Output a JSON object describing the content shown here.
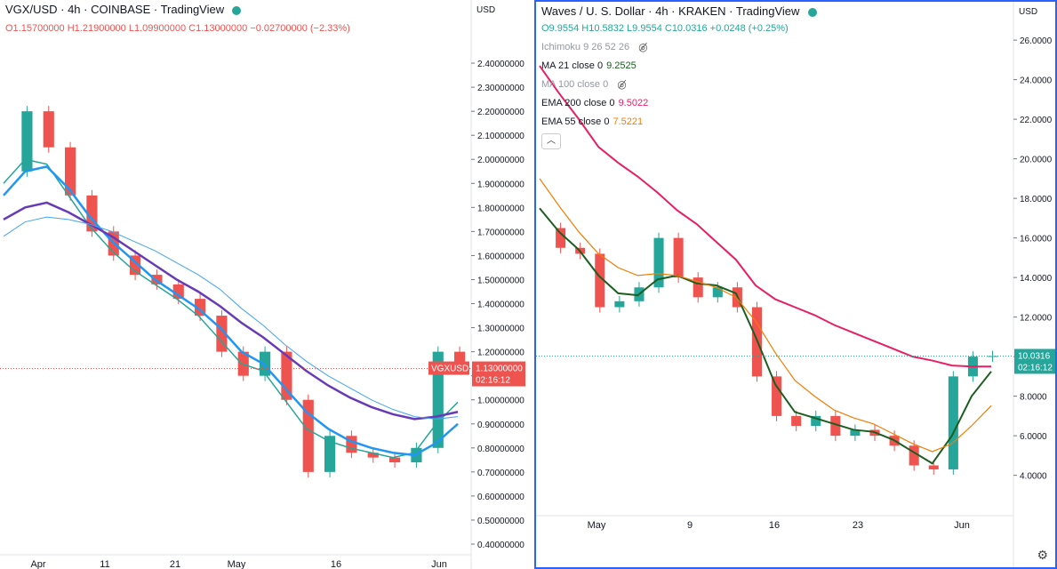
{
  "left": {
    "title": "VGX/USD · 4h · COINBASE · TradingView",
    "ohlc": {
      "o": "O1.15700000",
      "h": "H1.21900000",
      "l": "L1.09900000",
      "c": "C1.13000000",
      "chg": "−0.02700000 (−2.33%)"
    },
    "axis_label": "USD",
    "price_label": "1.13000000",
    "time_label": "02:16:12",
    "symbol_badge": "VGXUSD",
    "colors": {
      "up": "#26a69a",
      "down": "#ef5350",
      "ema_blue": "#2196f3",
      "ema_purple": "#673ab7",
      "ema_green": "#26a69a",
      "ema_light": "#42a5f5"
    }
  },
  "right": {
    "title": "Waves / U. S. Dollar · 4h · KRAKEN · TradingView",
    "ohlc": {
      "o": "O9.9554",
      "h": "H10.5832",
      "l": "L9.9554",
      "c": "C10.0316",
      "chg": "+0.0248 (+0.25%)"
    },
    "indicators": [
      {
        "label": "Ichimoku 9 26 52 26",
        "value": "",
        "hidden": true
      },
      {
        "label": "MA 21 close 0",
        "value": "9.2525",
        "hidden": false,
        "color": "#1b5e20"
      },
      {
        "label": "MA 100 close 0",
        "value": "",
        "hidden": true
      },
      {
        "label": "EMA 200 close 0",
        "value": "9.5022",
        "hidden": false,
        "color": "#e91e63"
      },
      {
        "label": "EMA 55 close 0",
        "value": "7.5221",
        "hidden": false,
        "color": "#f57c00"
      }
    ],
    "axis_label": "USD",
    "price_label": "10.0316",
    "time_label": "02:16:12",
    "colors": {
      "up": "#26a69a",
      "down": "#ef5350",
      "ma21": "#1b5e20",
      "ema200": "#e91e63",
      "ema55": "#f57c00"
    }
  },
  "chart_data": [
    {
      "type": "line",
      "title": "VGX/USD · 4h · COINBASE",
      "ylabel": "USD",
      "ylim": [
        0.4,
        2.5
      ],
      "yticks": [
        "2.40000000",
        "2.30000000",
        "2.20000000",
        "2.10000000",
        "2.00000000",
        "1.90000000",
        "1.80000000",
        "1.70000000",
        "1.60000000",
        "1.50000000",
        "1.40000000",
        "1.30000000",
        "1.20000000",
        "1.10000000",
        "1.00000000",
        "0.90000000",
        "0.80000000",
        "0.70000000",
        "0.60000000",
        "0.50000000",
        "0.40000000"
      ],
      "xticks": [
        "Apr",
        "11",
        "21",
        "May",
        "16",
        "Jun"
      ],
      "series": [
        {
          "name": "close",
          "values": [
            1.95,
            2.2,
            2.05,
            1.85,
            1.7,
            1.6,
            1.52,
            1.48,
            1.42,
            1.35,
            1.2,
            1.1,
            1.2,
            1.0,
            0.7,
            0.85,
            0.78,
            0.76,
            0.74,
            0.8,
            1.2,
            1.13
          ]
        },
        {
          "name": "ema-fast",
          "values": [
            1.9,
            2.0,
            1.98,
            1.85,
            1.72,
            1.62,
            1.54,
            1.48,
            1.42,
            1.35,
            1.25,
            1.15,
            1.12,
            1.0,
            0.88,
            0.83,
            0.8,
            0.78,
            0.76,
            0.78,
            0.9,
            0.99
          ]
        },
        {
          "name": "ema-mid",
          "values": [
            1.85,
            1.95,
            1.97,
            1.88,
            1.76,
            1.66,
            1.58,
            1.5,
            1.44,
            1.38,
            1.3,
            1.2,
            1.15,
            1.05,
            0.95,
            0.88,
            0.83,
            0.8,
            0.78,
            0.77,
            0.82,
            0.9
          ]
        },
        {
          "name": "ema-slow",
          "values": [
            1.75,
            1.8,
            1.82,
            1.78,
            1.73,
            1.68,
            1.62,
            1.56,
            1.5,
            1.45,
            1.39,
            1.32,
            1.26,
            1.19,
            1.12,
            1.06,
            1.01,
            0.97,
            0.94,
            0.92,
            0.93,
            0.95
          ]
        },
        {
          "name": "ma-long",
          "values": [
            1.68,
            1.74,
            1.76,
            1.75,
            1.73,
            1.7,
            1.66,
            1.62,
            1.57,
            1.52,
            1.46,
            1.38,
            1.31,
            1.23,
            1.16,
            1.1,
            1.05,
            1.0,
            0.96,
            0.93,
            0.92,
            0.93
          ]
        }
      ]
    },
    {
      "type": "line",
      "title": "Waves / U. S. Dollar · 4h · KRAKEN",
      "ylabel": "USD",
      "ylim": [
        2.5,
        26.5
      ],
      "yticks": [
        "26.0000",
        "24.0000",
        "22.0000",
        "20.0000",
        "18.0000",
        "16.0000",
        "14.0000",
        "12.0000",
        "10.0000",
        "8.0000",
        "6.0000",
        "4.0000"
      ],
      "xticks": [
        "May",
        "9",
        "16",
        "23",
        "Jun"
      ],
      "series": [
        {
          "name": "close",
          "values": [
            16.5,
            15.5,
            15.2,
            12.5,
            12.8,
            13.5,
            16.0,
            14.0,
            13.0,
            13.5,
            12.5,
            9.0,
            7.0,
            6.5,
            7.0,
            6.0,
            6.3,
            6.0,
            5.5,
            4.5,
            4.3,
            9.0,
            10.0,
            10.03
          ]
        },
        {
          "name": "MA 21 close 0",
          "values": [
            17.5,
            16.3,
            15.4,
            14.1,
            13.2,
            13.1,
            13.9,
            14.1,
            13.7,
            13.6,
            13.2,
            11.0,
            8.6,
            7.2,
            6.9,
            6.6,
            6.3,
            6.2,
            5.8,
            5.2,
            4.6,
            6.0,
            8.0,
            9.25
          ]
        },
        {
          "name": "EMA 55 close 0",
          "values": [
            19.0,
            17.6,
            16.3,
            15.2,
            14.5,
            14.1,
            14.2,
            14.1,
            13.8,
            13.5,
            13.0,
            11.8,
            10.2,
            8.8,
            8.0,
            7.3,
            6.9,
            6.6,
            6.1,
            5.6,
            5.2,
            5.6,
            6.5,
            7.52
          ]
        },
        {
          "name": "EMA 200 close 0",
          "values": [
            24.7,
            23.3,
            22.0,
            20.6,
            19.8,
            19.1,
            18.3,
            17.4,
            16.7,
            15.8,
            14.9,
            13.6,
            12.9,
            12.5,
            12.1,
            11.6,
            11.2,
            10.8,
            10.4,
            10.0,
            9.8,
            9.55,
            9.5,
            9.5
          ]
        }
      ]
    }
  ]
}
